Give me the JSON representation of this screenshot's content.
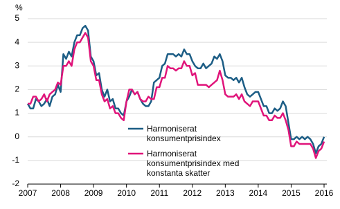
{
  "chart_data": {
    "type": "line",
    "y_unit": "%",
    "categories": [
      "2007",
      null,
      null,
      null,
      null,
      null,
      null,
      null,
      null,
      null,
      null,
      null,
      "2008",
      null,
      null,
      null,
      null,
      null,
      null,
      null,
      null,
      null,
      null,
      null,
      "2009",
      null,
      null,
      null,
      null,
      null,
      null,
      null,
      null,
      null,
      null,
      null,
      "2010",
      null,
      null,
      null,
      null,
      null,
      null,
      null,
      null,
      null,
      null,
      null,
      "2011",
      null,
      null,
      null,
      null,
      null,
      null,
      null,
      null,
      null,
      null,
      null,
      "2012",
      null,
      null,
      null,
      null,
      null,
      null,
      null,
      null,
      null,
      null,
      null,
      "2013",
      null,
      null,
      null,
      null,
      null,
      null,
      null,
      null,
      null,
      null,
      null,
      "2014",
      null,
      null,
      null,
      null,
      null,
      null,
      null,
      null,
      null,
      null,
      null,
      "2015",
      null,
      null,
      null,
      null,
      null,
      null,
      null,
      null,
      null,
      null,
      null,
      "2016"
    ],
    "series": [
      {
        "name": "Harmoniserat konsumentprisindex",
        "color": "#1c5d85",
        "values": [
          1.4,
          1.2,
          1.2,
          1.6,
          1.5,
          1.3,
          1.4,
          1.6,
          1.3,
          1.7,
          1.8,
          2.2,
          1.9,
          3.5,
          3.3,
          3.6,
          3.4,
          4.0,
          4.3,
          4.3,
          4.6,
          4.7,
          4.5,
          3.4,
          3.2,
          2.6,
          2.7,
          2.0,
          1.7,
          2.0,
          1.5,
          1.6,
          1.2,
          1.2,
          1.0,
          0.9,
          1.5,
          1.7,
          2.0,
          1.8,
          1.9,
          1.6,
          1.4,
          1.3,
          1.3,
          1.5,
          2.3,
          2.4,
          2.5,
          3.0,
          3.1,
          3.5,
          3.5,
          3.5,
          3.4,
          3.5,
          3.4,
          3.7,
          3.5,
          3.5,
          3.2,
          3.0,
          2.9,
          2.9,
          3.1,
          2.9,
          3.0,
          3.1,
          3.4,
          3.3,
          3.5,
          3.2,
          2.6,
          2.5,
          2.5,
          2.4,
          2.5,
          2.3,
          2.5,
          2.1,
          1.8,
          1.7,
          1.8,
          1.9,
          1.9,
          1.6,
          1.3,
          1.3,
          1.0,
          1.0,
          1.2,
          1.1,
          1.2,
          1.5,
          1.3,
          0.6,
          -0.1,
          -0.1,
          0.0,
          -0.1,
          0.0,
          -0.1,
          0.0,
          -0.1,
          -0.3,
          -0.7,
          -0.4,
          -0.3,
          0.0
        ]
      },
      {
        "name": "Harmoniserat konsumentprisindex med konstanta skatter",
        "color": "#e0147a",
        "values": [
          1.4,
          1.4,
          1.7,
          1.7,
          1.5,
          1.6,
          1.8,
          1.5,
          1.8,
          1.9,
          2.0,
          2.3,
          2.2,
          3.0,
          3.0,
          3.2,
          3.0,
          3.7,
          4.0,
          4.0,
          4.2,
          4.4,
          4.2,
          3.2,
          3.0,
          2.4,
          2.4,
          1.8,
          1.5,
          1.6,
          1.2,
          1.3,
          1.0,
          1.0,
          0.8,
          0.7,
          1.5,
          2.0,
          2.0,
          1.8,
          1.9,
          1.6,
          1.5,
          1.5,
          1.7,
          1.6,
          1.6,
          2.1,
          2.1,
          2.5,
          2.5,
          3.0,
          2.9,
          2.9,
          2.8,
          2.9,
          2.9,
          3.2,
          3.0,
          3.0,
          2.6,
          2.7,
          2.2,
          2.2,
          2.2,
          2.2,
          2.1,
          2.2,
          2.3,
          2.4,
          2.8,
          2.4,
          1.8,
          1.7,
          1.7,
          1.7,
          1.8,
          1.6,
          1.8,
          1.5,
          1.4,
          1.3,
          1.5,
          1.5,
          1.5,
          1.2,
          0.9,
          0.9,
          0.7,
          0.7,
          0.9,
          0.8,
          0.8,
          1.0,
          0.7,
          0.3,
          -0.4,
          -0.4,
          -0.2,
          -0.3,
          -0.3,
          -0.3,
          -0.3,
          -0.3,
          -0.5,
          -0.9,
          -0.6,
          -0.5,
          -0.2
        ]
      }
    ],
    "ylim": [
      -2,
      5
    ],
    "yticks": [
      -2,
      -1,
      0,
      1,
      2,
      3,
      4,
      5
    ],
    "grid": true
  }
}
